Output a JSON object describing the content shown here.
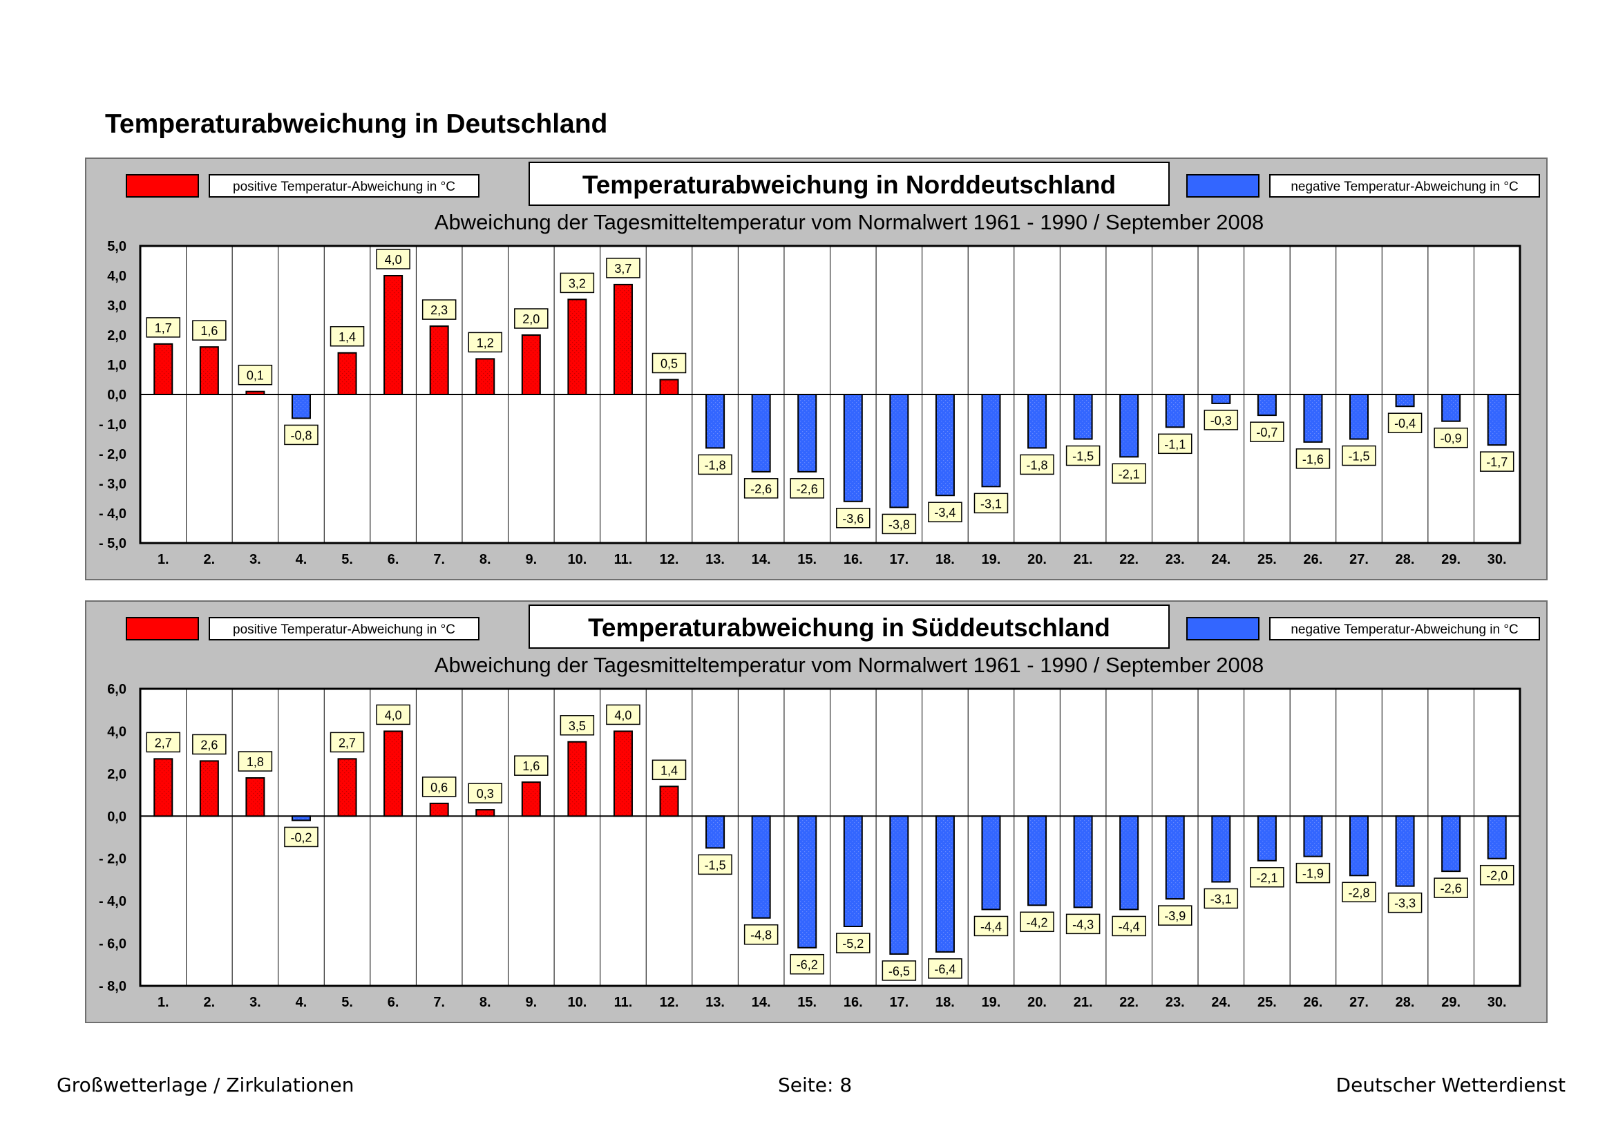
{
  "page": {
    "title": "Temperaturabweichung in Deutschland",
    "footer_left": "Großwetterlage / Zirkulationen",
    "footer_center": "Seite: 8",
    "footer_right": "Deutscher Wetterdienst"
  },
  "legend": {
    "positive_label": "positive Temperatur-Abweichung in °C",
    "negative_label": "negative Temperatur-Abweichung in °C",
    "positive_color": "#ff0000",
    "negative_color": "#3366ff"
  },
  "chart_data": [
    {
      "type": "bar",
      "title": "Temperaturabweichung in Norddeutschland",
      "subtitle": "Abweichung der Tagesmitteltemperatur vom Normalwert 1961 - 1990  /  September 2008",
      "categories": [
        "1.",
        "2.",
        "3.",
        "4.",
        "5.",
        "6.",
        "7.",
        "8.",
        "9.",
        "10.",
        "11.",
        "12.",
        "13.",
        "14.",
        "15.",
        "16.",
        "17.",
        "18.",
        "19.",
        "20.",
        "21.",
        "22.",
        "23.",
        "24.",
        "25.",
        "26.",
        "27.",
        "28.",
        "29.",
        "30."
      ],
      "values": [
        1.7,
        1.6,
        0.1,
        -0.8,
        1.4,
        4.0,
        2.3,
        1.2,
        2.0,
        3.2,
        3.7,
        0.5,
        -1.8,
        -2.6,
        -2.6,
        -3.6,
        -3.8,
        -3.4,
        -3.1,
        -1.8,
        -1.5,
        -2.1,
        -1.1,
        -0.3,
        -0.7,
        -1.6,
        -1.5,
        -0.4,
        -0.9,
        -1.7
      ],
      "value_labels": [
        "1,7",
        "1,6",
        "0,1",
        "-0,8",
        "1,4",
        "4,0",
        "2,3",
        "1,2",
        "2,0",
        "3,2",
        "3,7",
        "0,5",
        "-1,8",
        "-2,6",
        "-2,6",
        "-3,6",
        "-3,8",
        "-3,4",
        "-3,1",
        "-1,8",
        "-1,5",
        "-2,1",
        "-1,1",
        "-0,3",
        "-0,7",
        "-1,6",
        "-1,5",
        "-0,4",
        "-0,9",
        "-1,7"
      ],
      "ylim": [
        -5,
        5
      ],
      "yticks": [
        5,
        4,
        3,
        2,
        1,
        0,
        -1,
        -2,
        -3,
        -4,
        -5
      ],
      "ytick_labels": [
        "5,0",
        "4,0",
        "3,0",
        "2,0",
        "1,0",
        "0,0",
        "- 1,0",
        "- 2,0",
        "- 3,0",
        "- 4,0",
        "- 5,0"
      ],
      "xlabel": "",
      "ylabel": ""
    },
    {
      "type": "bar",
      "title": "Temperaturabweichung in Süddeutschland",
      "subtitle": "Abweichung der Tagesmitteltemperatur vom Normalwert 1961 - 1990  /  September 2008",
      "categories": [
        "1.",
        "2.",
        "3.",
        "4.",
        "5.",
        "6.",
        "7.",
        "8.",
        "9.",
        "10.",
        "11.",
        "12.",
        "13.",
        "14.",
        "15.",
        "16.",
        "17.",
        "18.",
        "19.",
        "20.",
        "21.",
        "22.",
        "23.",
        "24.",
        "25.",
        "26.",
        "27.",
        "28.",
        "29.",
        "30."
      ],
      "values": [
        2.7,
        2.6,
        1.8,
        -0.2,
        2.7,
        4.0,
        0.6,
        0.3,
        1.6,
        3.5,
        4.0,
        1.4,
        -1.5,
        -4.8,
        -6.2,
        -5.2,
        -6.5,
        -6.4,
        -4.4,
        -4.2,
        -4.3,
        -4.4,
        -3.9,
        -3.1,
        -2.1,
        -1.9,
        -2.8,
        -3.3,
        -2.6,
        -2.0
      ],
      "value_labels": [
        "2,7",
        "2,6",
        "1,8",
        "-0,2",
        "2,7",
        "4,0",
        "0,6",
        "0,3",
        "1,6",
        "3,5",
        "4,0",
        "1,4",
        "-1,5",
        "-4,8",
        "-6,2",
        "-5,2",
        "-6,5",
        "-6,4",
        "-4,4",
        "-4,2",
        "-4,3",
        "-4,4",
        "-3,9",
        "-3,1",
        "-2,1",
        "-1,9",
        "-2,8",
        "-3,3",
        "-2,6",
        "-2,0"
      ],
      "ylim": [
        -8,
        6
      ],
      "yticks": [
        6,
        4,
        2,
        0,
        -2,
        -4,
        -6,
        -8
      ],
      "ytick_labels": [
        "6,0",
        "4,0",
        "2,0",
        "0,0",
        "- 2,0",
        "- 4,0",
        "- 6,0",
        "- 8,0"
      ],
      "xlabel": "",
      "ylabel": ""
    }
  ]
}
